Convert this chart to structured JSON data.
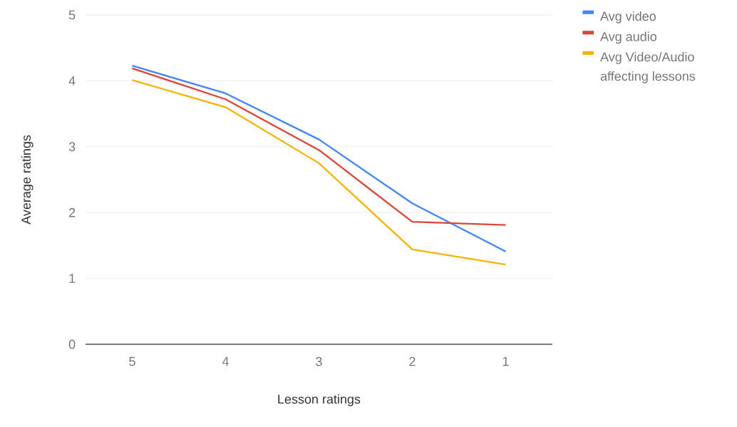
{
  "chart_data": {
    "type": "line",
    "xlabel": "Lesson ratings",
    "ylabel": "Average ratings",
    "categories": [
      "5",
      "4",
      "3",
      "2",
      "1"
    ],
    "series": [
      {
        "name": "Avg video",
        "color": "#4285f4",
        "values": [
          4.23,
          3.81,
          3.11,
          2.14,
          1.41
        ]
      },
      {
        "name": "Avg audio",
        "color": "#db4437",
        "values": [
          4.19,
          3.72,
          2.95,
          1.86,
          1.81
        ]
      },
      {
        "name": "Avg Video/Audio affecting lessons",
        "color": "#f4b400",
        "values": [
          4.01,
          3.6,
          2.75,
          1.44,
          1.21
        ]
      }
    ],
    "ylim": [
      0,
      5
    ],
    "yticks": [
      0,
      1,
      2,
      3,
      4,
      5
    ],
    "grid": "y",
    "legend": "top right",
    "marker": "none",
    "line_style": "solid"
  }
}
